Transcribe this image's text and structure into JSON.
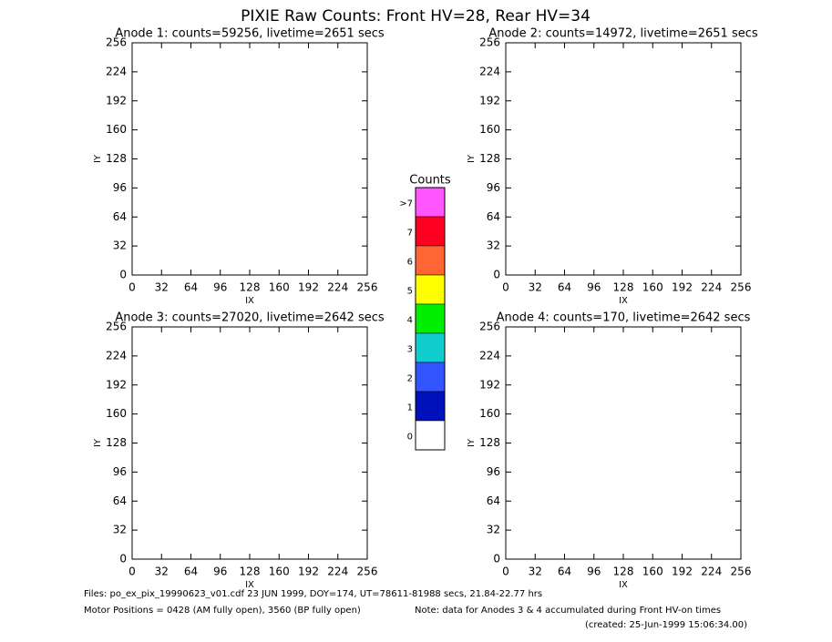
{
  "title": "PIXIE Raw Counts:  Front HV=28, Rear HV=34",
  "chart_data": [
    {
      "type": "heatmap",
      "title": "Anode 1: counts=59256, livetime=2651 secs",
      "xlabel": "IX",
      "ylabel": "IY",
      "xlim": [
        0,
        256
      ],
      "ylim": [
        0,
        256
      ],
      "xticks": [
        0,
        32,
        64,
        96,
        128,
        160,
        192,
        224,
        256
      ],
      "yticks": [
        0,
        32,
        64,
        96,
        128,
        160,
        192,
        224,
        256
      ]
    },
    {
      "type": "heatmap",
      "title": "Anode 2: counts=14972, livetime=2651 secs",
      "xlabel": "IX",
      "ylabel": "IY",
      "xlim": [
        0,
        256
      ],
      "ylim": [
        0,
        256
      ],
      "xticks": [
        0,
        32,
        64,
        96,
        128,
        160,
        192,
        224,
        256
      ],
      "yticks": [
        0,
        32,
        64,
        96,
        128,
        160,
        192,
        224,
        256
      ]
    },
    {
      "type": "heatmap",
      "title": "Anode 3: counts=27020, livetime=2642 secs",
      "xlabel": "IX",
      "ylabel": "IY",
      "xlim": [
        0,
        256
      ],
      "ylim": [
        0,
        256
      ],
      "xticks": [
        0,
        32,
        64,
        96,
        128,
        160,
        192,
        224,
        256
      ],
      "yticks": [
        0,
        32,
        64,
        96,
        128,
        160,
        192,
        224,
        256
      ]
    },
    {
      "type": "heatmap",
      "title": "Anode 4: counts=170, livetime=2642 secs",
      "xlabel": "IX",
      "ylabel": "IY",
      "xlim": [
        0,
        256
      ],
      "ylim": [
        0,
        256
      ],
      "xticks": [
        0,
        32,
        64,
        96,
        128,
        160,
        192,
        224,
        256
      ],
      "yticks": [
        0,
        32,
        64,
        96,
        128,
        160,
        192,
        224,
        256
      ]
    }
  ],
  "colorbar": {
    "title": "Counts",
    "levels": [
      {
        "label": ">7",
        "color": "#ff55ff"
      },
      {
        "label": "7",
        "color": "#ff0022"
      },
      {
        "label": "6",
        "color": "#ff6633"
      },
      {
        "label": "5",
        "color": "#ffff00"
      },
      {
        "label": "4",
        "color": "#00ee00"
      },
      {
        "label": "3",
        "color": "#11cccc"
      },
      {
        "label": "2",
        "color": "#3355ff"
      },
      {
        "label": "1",
        "color": "#0011bb"
      },
      {
        "label": "0",
        "color": "#ffffff"
      }
    ]
  },
  "footer": {
    "files": "Files: po_ex_pix_19990623_v01.cdf    23 JUN 1999, DOY=174, UT=78611-81988 secs, 21.84-22.77 hrs",
    "motor": "Motor Positions = 0428 (AM fully open), 3560 (BP fully open)",
    "note": "Note: data for Anodes 3 & 4 accumulated during Front HV-on times",
    "created": "(created: 25-Jun-1999 15:06:34.00)"
  }
}
